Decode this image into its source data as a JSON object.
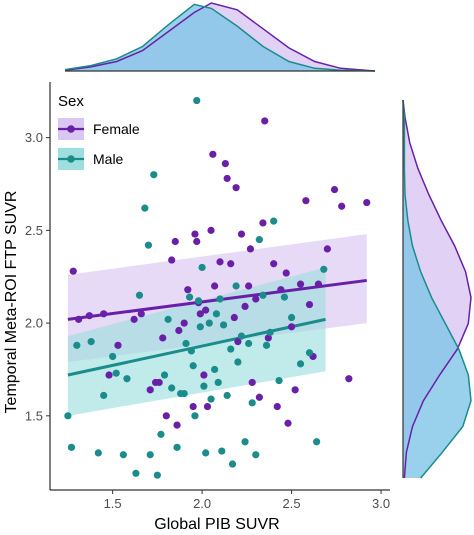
{
  "chart_data": {
    "type": "scatter",
    "xlabel": "Global PIB SUVR",
    "ylabel": "Temporal Meta-ROI FTP SUVR",
    "xlim": [
      1.15,
      3.05
    ],
    "ylim": [
      1.1,
      3.3
    ],
    "x_ticks": [
      "1.5",
      "2.0",
      "2.5",
      "3.0"
    ],
    "y_ticks": [
      "1.5",
      "2.0",
      "2.5",
      "3.0"
    ],
    "grid": false,
    "legend": {
      "title": "Sex",
      "position": "top-left",
      "entries": [
        "Female",
        "Male"
      ]
    },
    "colors": {
      "female": "#6a1fa8",
      "male": "#1a8c8c",
      "female_fill": "#d9c6f2",
      "male_fill": "#9fdede",
      "density_fill": "#7fc6e8"
    },
    "series": [
      {
        "name": "Female",
        "points": [
          [
            1.28,
            2.28
          ],
          [
            1.31,
            2.02
          ],
          [
            1.37,
            2.04
          ],
          [
            1.45,
            2.05
          ],
          [
            1.48,
            1.72
          ],
          [
            1.53,
            1.88
          ],
          [
            1.62,
            2.02
          ],
          [
            1.66,
            2.05
          ],
          [
            1.71,
            1.64
          ],
          [
            1.74,
            1.68
          ],
          [
            1.76,
            1.68
          ],
          [
            1.78,
            1.92
          ],
          [
            1.8,
            1.5
          ],
          [
            1.83,
            2.34
          ],
          [
            1.85,
            2.44
          ],
          [
            1.86,
            1.45
          ],
          [
            1.87,
            1.96
          ],
          [
            1.9,
            2.0
          ],
          [
            1.92,
            2.18
          ],
          [
            1.95,
            1.55
          ],
          [
            1.96,
            2.48
          ],
          [
            1.97,
            2.44
          ],
          [
            1.98,
            2.11
          ],
          [
            1.99,
            2.05
          ],
          [
            2.01,
            1.72
          ],
          [
            2.02,
            2.07
          ],
          [
            2.03,
            1.55
          ],
          [
            2.05,
            2.5
          ],
          [
            2.06,
            2.91
          ],
          [
            2.07,
            2.2
          ],
          [
            2.1,
            2.33
          ],
          [
            2.13,
            2.86
          ],
          [
            2.14,
            2.78
          ],
          [
            2.16,
            2.32
          ],
          [
            2.18,
            2.03
          ],
          [
            2.19,
            2.73
          ],
          [
            2.2,
            1.9
          ],
          [
            2.22,
            2.48
          ],
          [
            2.24,
            2.09
          ],
          [
            2.27,
            2.4
          ],
          [
            2.28,
            1.68
          ],
          [
            2.3,
            2.13
          ],
          [
            2.32,
            1.6
          ],
          [
            2.34,
            2.54
          ],
          [
            2.35,
            3.09
          ],
          [
            2.37,
            1.92
          ],
          [
            2.4,
            2.32
          ],
          [
            2.42,
            1.55
          ],
          [
            2.44,
            2.18
          ],
          [
            2.47,
            2.27
          ],
          [
            2.5,
            1.98
          ],
          [
            2.52,
            1.64
          ],
          [
            2.55,
            2.21
          ],
          [
            2.58,
            2.66
          ],
          [
            2.6,
            2.1
          ],
          [
            2.62,
            1.82
          ],
          [
            2.65,
            2.21
          ],
          [
            2.7,
            2.4
          ],
          [
            2.74,
            2.72
          ],
          [
            2.78,
            2.63
          ],
          [
            2.82,
            1.7
          ],
          [
            2.92,
            2.65
          ],
          [
            2.48,
            1.46
          ],
          [
            2.26,
            2.2
          ]
        ]
      },
      {
        "name": "Male",
        "points": [
          [
            1.25,
            1.5
          ],
          [
            1.27,
            1.33
          ],
          [
            1.3,
            1.88
          ],
          [
            1.38,
            1.9
          ],
          [
            1.42,
            1.3
          ],
          [
            1.45,
            1.61
          ],
          [
            1.5,
            1.82
          ],
          [
            1.52,
            1.73
          ],
          [
            1.56,
            1.29
          ],
          [
            1.58,
            1.7
          ],
          [
            1.63,
            1.19
          ],
          [
            1.65,
            2.15
          ],
          [
            1.68,
            2.62
          ],
          [
            1.7,
            2.42
          ],
          [
            1.71,
            1.29
          ],
          [
            1.73,
            2.8
          ],
          [
            1.75,
            1.18
          ],
          [
            1.77,
            1.4
          ],
          [
            1.79,
            1.72
          ],
          [
            1.81,
            2.02
          ],
          [
            1.83,
            1.65
          ],
          [
            1.86,
            1.33
          ],
          [
            1.88,
            1.62
          ],
          [
            1.9,
            1.62
          ],
          [
            1.91,
            1.89
          ],
          [
            1.93,
            2.14
          ],
          [
            1.94,
            1.85
          ],
          [
            1.95,
            1.77
          ],
          [
            1.97,
            3.2
          ],
          [
            1.98,
            2.12
          ],
          [
            1.99,
            1.98
          ],
          [
            2.0,
            2.3
          ],
          [
            2.01,
            1.66
          ],
          [
            2.02,
            1.3
          ],
          [
            2.04,
            2.0
          ],
          [
            2.05,
            1.59
          ],
          [
            2.07,
            1.75
          ],
          [
            2.09,
            1.68
          ],
          [
            2.1,
            2.13
          ],
          [
            2.12,
            1.99
          ],
          [
            2.14,
            1.61
          ],
          [
            2.16,
            1.86
          ],
          [
            2.17,
            1.24
          ],
          [
            2.19,
            2.2
          ],
          [
            2.2,
            1.79
          ],
          [
            2.22,
            1.93
          ],
          [
            2.24,
            1.36
          ],
          [
            2.26,
            1.89
          ],
          [
            2.28,
            1.57
          ],
          [
            2.3,
            1.29
          ],
          [
            2.32,
            2.45
          ],
          [
            2.34,
            2.15
          ],
          [
            2.36,
            1.88
          ],
          [
            2.38,
            1.95
          ],
          [
            2.4,
            2.55
          ],
          [
            2.43,
            1.69
          ],
          [
            2.46,
            2.14
          ],
          [
            2.5,
            2.03
          ],
          [
            2.55,
            1.78
          ],
          [
            2.6,
            1.84
          ],
          [
            2.64,
            1.36
          ],
          [
            2.68,
            2.29
          ],
          [
            1.96,
            1.5
          ],
          [
            2.08,
            2.05
          ],
          [
            2.11,
            1.31
          ]
        ]
      }
    ],
    "regression": [
      {
        "name": "Female",
        "x": [
          1.25,
          2.92
        ],
        "y": [
          2.02,
          2.23
        ],
        "ci_low": [
          1.79,
          2.0
        ],
        "ci_high": [
          2.26,
          2.48
        ]
      },
      {
        "name": "Male",
        "x": [
          1.25,
          2.69
        ],
        "y": [
          1.72,
          2.02
        ],
        "ci_low": [
          1.5,
          1.74
        ],
        "ci_high": [
          1.93,
          2.3
        ]
      }
    ],
    "marginal_x": {
      "x": [
        1.2,
        1.35,
        1.5,
        1.65,
        1.8,
        1.95,
        2.05,
        2.2,
        2.35,
        2.5,
        2.65,
        2.8,
        3.0
      ],
      "female": [
        0.01,
        0.06,
        0.14,
        0.3,
        0.58,
        0.86,
        1.0,
        0.9,
        0.62,
        0.34,
        0.14,
        0.04,
        0.0
      ],
      "male": [
        0.02,
        0.08,
        0.18,
        0.36,
        0.68,
        0.98,
        0.92,
        0.66,
        0.36,
        0.14,
        0.04,
        0.01,
        0.0
      ]
    },
    "marginal_y": {
      "y": [
        1.1,
        1.25,
        1.4,
        1.55,
        1.7,
        1.85,
        2.0,
        2.15,
        2.3,
        2.45,
        2.6,
        2.75,
        2.9,
        3.05,
        3.2,
        3.3
      ],
      "female": [
        0.02,
        0.05,
        0.14,
        0.3,
        0.54,
        0.8,
        0.96,
        1.0,
        0.92,
        0.76,
        0.56,
        0.38,
        0.22,
        0.1,
        0.03,
        0.0
      ],
      "male": [
        0.26,
        0.58,
        0.88,
        1.0,
        0.96,
        0.82,
        0.62,
        0.42,
        0.26,
        0.14,
        0.07,
        0.03,
        0.02,
        0.02,
        0.02,
        0.0
      ]
    }
  }
}
